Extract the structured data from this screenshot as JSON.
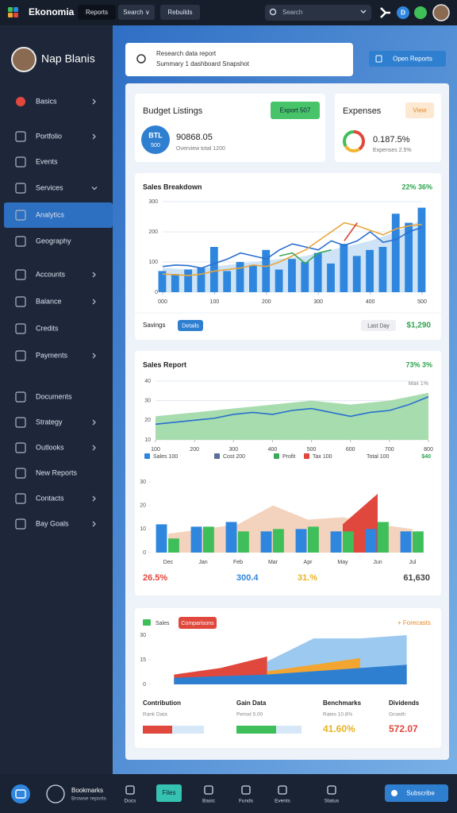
{
  "topbar": {
    "brand": "Ekonomia",
    "tabs": [
      "Reports",
      "Search ∨",
      "Rebuilds"
    ],
    "search": "Search",
    "badge": "D"
  },
  "sidebar": {
    "user": "Nap Blanis",
    "active": 4,
    "items": [
      "Basics",
      "Portfolio",
      "Events",
      "Services",
      "Analytics",
      "Geography",
      "Accounts",
      "Balance",
      "Credits",
      "Payments",
      "Documents",
      "Strategy",
      "Outlooks",
      "New Reports",
      "Contacts",
      "Bay Goals"
    ]
  },
  "header": {
    "line1": "Research data report",
    "line2": "Summary 1 dashboard Snapshot",
    "button": "Open Reports"
  },
  "budget": {
    "title": "Budget Listings",
    "badge": "Export 507",
    "circle_top": "BTL",
    "circle_bottom": "500",
    "amount": "90868.05",
    "note": "Overview total 1200"
  },
  "expenses": {
    "title": "Expenses",
    "badge": "View",
    "amount": "0.187.5%",
    "note": "Expenses 2.5%"
  },
  "breakdown": {
    "summary": "22% 36%",
    "footer_label": "Savings",
    "button": "Details",
    "period": "Last Day",
    "total": "$1,290"
  },
  "report": {
    "summary": "73% 3%",
    "max": "Max 1%",
    "total": "Total 100",
    "total_value": "$40",
    "stats": [
      "26.5%",
      "300.4",
      "31.%",
      "61,630"
    ]
  },
  "comparison": {
    "legend": "Sales",
    "badge": "Comparisons",
    "forecast": "+ Forecasts",
    "columns": [
      {
        "label": "Contribution",
        "note": "Rank Data"
      },
      {
        "label": "Gain Data",
        "note": "Period 5.00"
      },
      {
        "label": "Benchmarks",
        "note": "Rates 10.8%",
        "value": "41.60%"
      },
      {
        "label": "Dividends",
        "note": "Growth",
        "value": "572.07"
      }
    ]
  },
  "bottombar": {
    "title": "Bookmarks",
    "subtitle": "Browse reports",
    "items": [
      "Docs",
      "Files",
      "Basic",
      "Funds",
      "Events",
      "Status"
    ],
    "button": "Subscribe"
  },
  "chart_data": [
    {
      "type": "combo",
      "title": "Sales Breakdown",
      "grid": true,
      "x": [
        0,
        25,
        50,
        75,
        100,
        125,
        150,
        175,
        200,
        225,
        250,
        275,
        300,
        325,
        350,
        375,
        400,
        425,
        450,
        475,
        500
      ],
      "xlim": [
        0,
        500
      ],
      "xticks": [
        {
          "value": 0,
          "label": "000"
        },
        100,
        200,
        300,
        400,
        500
      ],
      "ylim": [
        0,
        300
      ],
      "yticks": [
        0,
        100,
        200,
        300
      ],
      "series": [
        {
          "name": "Trend",
          "type": "area",
          "color": "#cfe3f6",
          "values": [
            80,
            78,
            76,
            80,
            85,
            90,
            95,
            100,
            105,
            110,
            115,
            120,
            130,
            140,
            150,
            160,
            170,
            185,
            200,
            220,
            240
          ]
        },
        {
          "name": "Volume",
          "type": "bar",
          "color": "#2f86de",
          "values": [
            70,
            60,
            75,
            80,
            150,
            70,
            100,
            90,
            140,
            75,
            110,
            100,
            130,
            95,
            160,
            120,
            140,
            150,
            260,
            230,
            280
          ]
        },
        {
          "name": "Revenue",
          "type": "line",
          "color": "#2a6fcf",
          "values": [
            85,
            90,
            88,
            80,
            95,
            110,
            130,
            120,
            110,
            140,
            160,
            150,
            140,
            170,
            155,
            170,
            200,
            165,
            175,
            200,
            215
          ]
        },
        {
          "name": "Cost",
          "type": "line",
          "color": "#e9a63a",
          "values": [
            60,
            58,
            55,
            60,
            70,
            75,
            80,
            90,
            85,
            100,
            120,
            140,
            170,
            200,
            230,
            220,
            205,
            190,
            210,
            220,
            225
          ]
        },
        {
          "name": "Margin",
          "type": "line",
          "color": "#3aa95a",
          "values": [
            null,
            null,
            null,
            null,
            null,
            null,
            null,
            null,
            null,
            120,
            130,
            95,
            130,
            140,
            null,
            null,
            null,
            null,
            null,
            null,
            null
          ]
        },
        {
          "name": "Loss",
          "type": "line",
          "color": "#d8453a",
          "values": [
            null,
            null,
            null,
            null,
            null,
            null,
            null,
            null,
            null,
            null,
            null,
            null,
            null,
            null,
            170,
            230,
            null,
            null,
            null,
            null,
            null
          ]
        }
      ]
    },
    {
      "type": "combo",
      "title": "Sales Report",
      "grid": true,
      "x": [
        100,
        150,
        200,
        250,
        300,
        350,
        400,
        450,
        500,
        550,
        600,
        650,
        700,
        750,
        800
      ],
      "xlim": [
        100,
        800
      ],
      "xticks": [
        100,
        200,
        300,
        400,
        500,
        600,
        700,
        800
      ],
      "ylim": [
        10,
        40
      ],
      "yticks": [
        10,
        20,
        30,
        40
      ],
      "legend": [
        {
          "name": "Sales 100",
          "color": "#2f86de"
        },
        {
          "name": "Cost 200",
          "color": "#5a6f9a"
        },
        {
          "name": "Profit",
          "color": "#3aa95a"
        },
        {
          "name": "Tax 100",
          "color": "#e0473d"
        }
      ],
      "series": [
        {
          "name": "Range",
          "type": "area",
          "color": "#a6dcae",
          "values": [
            22,
            23,
            24,
            25,
            26,
            27,
            28,
            29,
            30,
            29,
            28,
            29,
            30,
            32,
            34
          ]
        },
        {
          "name": "Sales",
          "type": "line",
          "color": "#2a6fcf",
          "values": [
            18,
            19,
            20,
            21,
            23,
            24,
            23,
            25,
            26,
            24,
            22,
            24,
            25,
            28,
            32
          ]
        }
      ]
    },
    {
      "type": "combo",
      "grid": false,
      "categories": [
        "Dec",
        "Jan",
        "Feb",
        "Mar",
        "Apr",
        "May",
        "Jun",
        "Jul"
      ],
      "ylim": [
        0,
        30
      ],
      "yticks": [
        0,
        10,
        20,
        30
      ],
      "series": [
        {
          "name": "Costs",
          "type": "area",
          "color": "#f3d3bd",
          "values": [
            8,
            10,
            12,
            20,
            14,
            15,
            12,
            10
          ]
        },
        {
          "name": "Peak",
          "type": "area",
          "color": "#e0473d",
          "values": [
            null,
            null,
            null,
            null,
            null,
            12,
            25,
            null
          ]
        },
        {
          "name": "Sales",
          "type": "bar",
          "color": "#2f86de",
          "values": [
            12,
            11,
            13,
            9,
            10,
            9,
            10,
            9
          ]
        },
        {
          "name": "Profit",
          "type": "bar",
          "color": "#3fbf5a",
          "values": [
            6,
            11,
            9,
            10,
            11,
            9,
            13,
            9
          ]
        }
      ]
    },
    {
      "type": "combo",
      "grid": false,
      "categories": [
        null,
        null,
        null,
        null,
        null,
        null
      ],
      "ylim": [
        0,
        30
      ],
      "yticks": [
        0,
        15,
        30
      ],
      "series": [
        {
          "name": "Forecasts",
          "type": "area",
          "color": "#9cc9f0",
          "values": [
            null,
            null,
            14,
            28,
            28,
            30
          ]
        },
        {
          "name": "Comparisons",
          "type": "area",
          "color": "#e0473d",
          "values": [
            6,
            10,
            17,
            null,
            null,
            null
          ]
        },
        {
          "name": "Trend",
          "type": "area",
          "color": "#f2a531",
          "values": [
            null,
            null,
            8,
            12,
            16,
            null
          ]
        },
        {
          "name": "Sales",
          "type": "area",
          "color": "#2f7fd1",
          "values": [
            4,
            5,
            6,
            8,
            10,
            12
          ]
        }
      ]
    }
  ]
}
